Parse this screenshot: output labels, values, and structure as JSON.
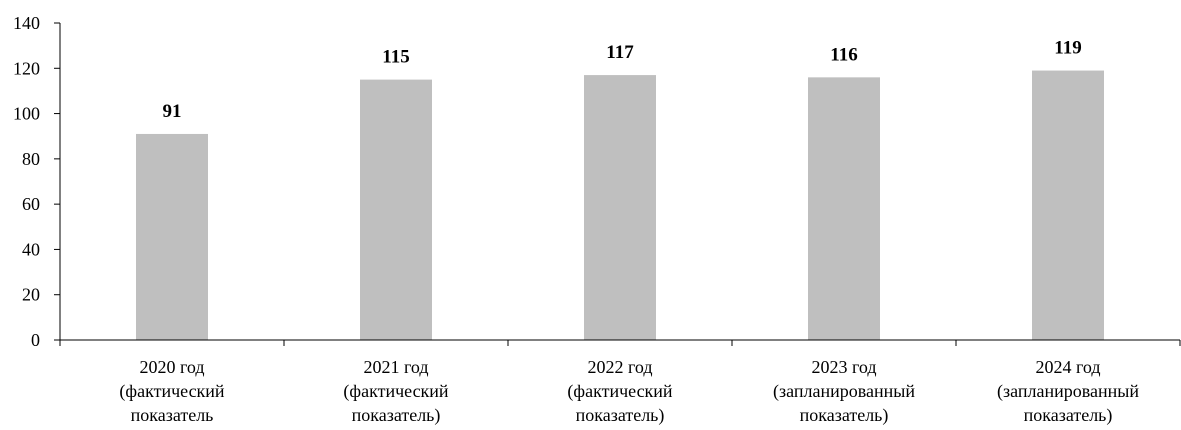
{
  "chart_data": {
    "type": "bar",
    "categories": [
      [
        "2020 год",
        "(фактический",
        "показатель"
      ],
      [
        "2021 год",
        "(фактический",
        "показатель)"
      ],
      [
        "2022 год",
        "(фактический",
        "показатель)"
      ],
      [
        "2023 год",
        "(запланированный",
        "показатель)"
      ],
      [
        "2024 год",
        "(запланированный",
        "показатель)"
      ]
    ],
    "values": [
      91,
      115,
      117,
      116,
      119
    ],
    "data_labels": [
      "91",
      "115",
      "117",
      "116",
      "119"
    ],
    "ylim": [
      0,
      140
    ],
    "yticks": [
      0,
      20,
      40,
      60,
      80,
      100,
      120,
      140
    ],
    "title": "",
    "xlabel": "",
    "ylabel": "",
    "grid": false,
    "legend": "none",
    "colors": {
      "bar": "#bfbfbf",
      "axis": "#000000",
      "text": "#000000"
    }
  }
}
